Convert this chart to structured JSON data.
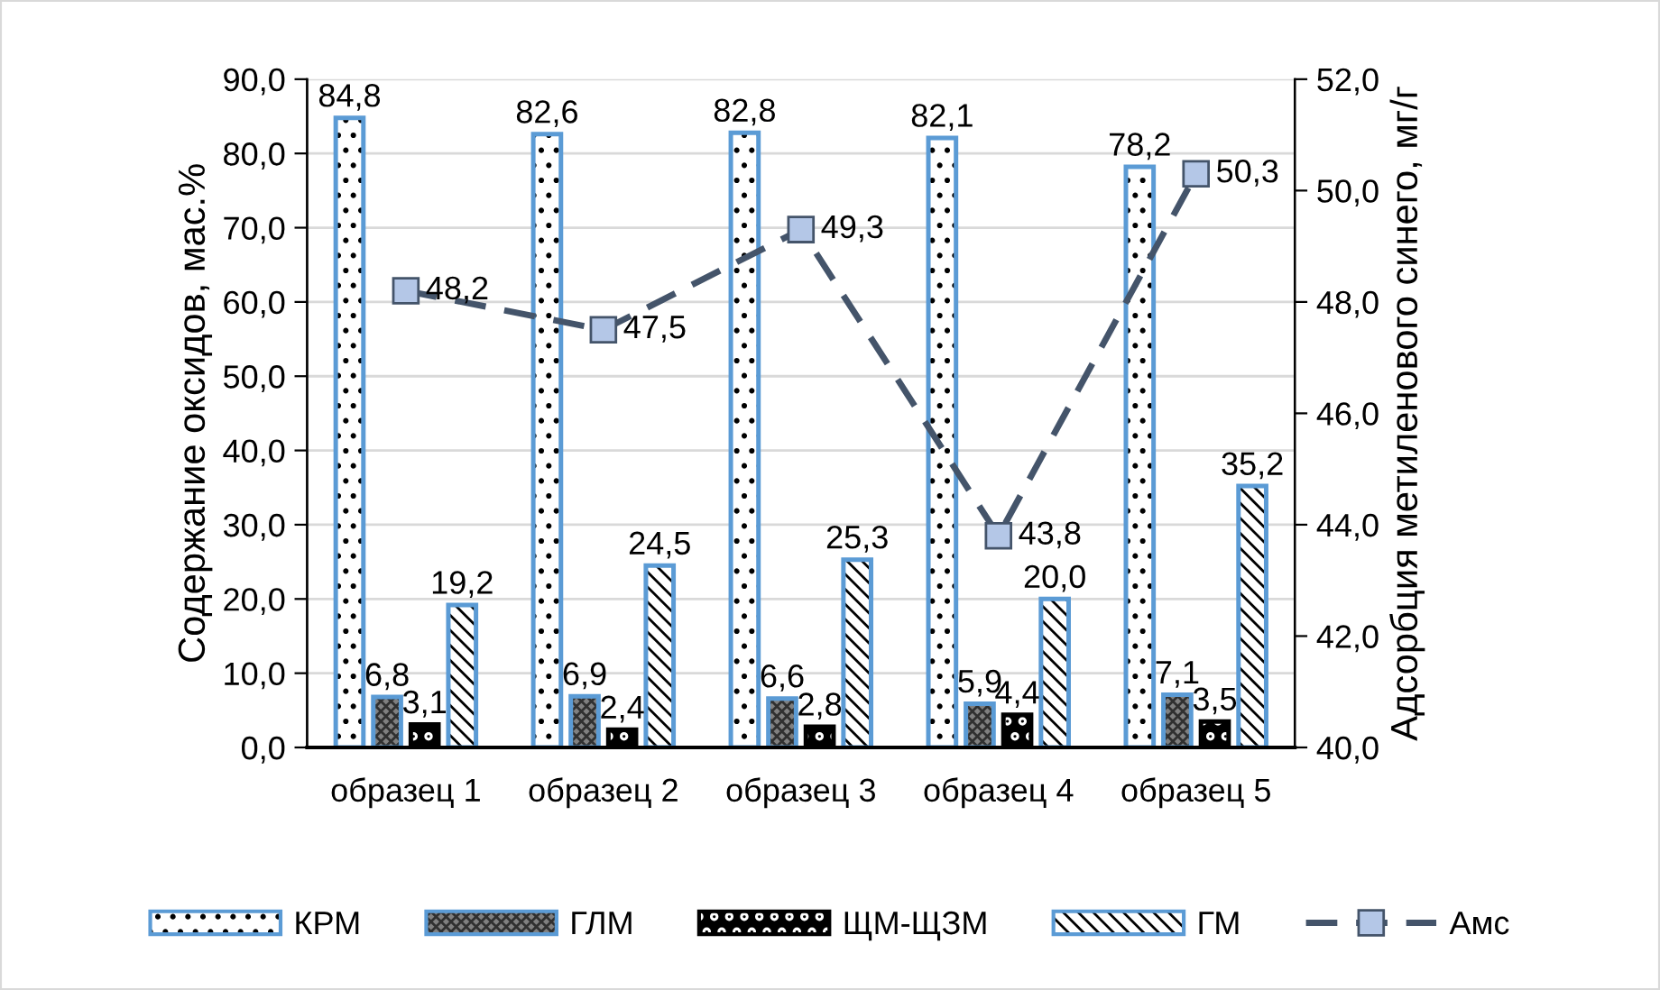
{
  "chart_data": {
    "type": "bar",
    "categories": [
      "образец 1",
      "образец 2",
      "образец 3",
      "образец 4",
      "образец 5"
    ],
    "ylabel": "Содержание оксидов, мас.%",
    "y2label": "Адсорбция метиленового синего, мг/г",
    "series": [
      {
        "name": "КРМ",
        "color": "#5b9bd5",
        "values": [
          84.8,
          82.6,
          82.8,
          82.1,
          78.2
        ],
        "value_labels": [
          "84,8",
          "82,6",
          "82,8",
          "82,1",
          "78,2"
        ]
      },
      {
        "name": "ГЛМ",
        "color": "#5b9bd5",
        "values": [
          6.8,
          6.9,
          6.6,
          5.9,
          7.1
        ],
        "value_labels": [
          "6,8",
          "6,9",
          "6,6",
          "5,9",
          "7,1"
        ]
      },
      {
        "name": "ЩМ-ЩЗМ",
        "color": "#000000",
        "values": [
          3.1,
          2.4,
          2.8,
          4.4,
          3.5
        ],
        "value_labels": [
          "3,1",
          "2,4",
          "2,8",
          "4,4",
          "3,5"
        ]
      },
      {
        "name": "ГМ",
        "color": "#5b9bd5",
        "values": [
          19.2,
          24.5,
          25.3,
          20.0,
          35.2
        ],
        "value_labels": [
          "19,2",
          "24,5",
          "25,3",
          "20,0",
          "35,2"
        ]
      },
      {
        "name": "Амс",
        "type": "line",
        "axis": "y2",
        "color": "#44546a",
        "marker": "square",
        "line_style": "dashed",
        "values": [
          48.2,
          47.5,
          49.3,
          43.8,
          50.3
        ],
        "value_labels": [
          "48,2",
          "47,5",
          "49,3",
          "43,8",
          "50,3"
        ]
      }
    ],
    "ylim": [
      0,
      90
    ],
    "yticks": [
      {
        "value": 0,
        "label": "0,0"
      },
      {
        "value": 10,
        "label": "10,0"
      },
      {
        "value": 20,
        "label": "20,0"
      },
      {
        "value": 30,
        "label": "30,0"
      },
      {
        "value": 40,
        "label": "40,0"
      },
      {
        "value": 50,
        "label": "50,0"
      },
      {
        "value": 60,
        "label": "60,0"
      },
      {
        "value": 70,
        "label": "70,0"
      },
      {
        "value": 80,
        "label": "80,0"
      },
      {
        "value": 90,
        "label": "90,0"
      }
    ],
    "y2lim": [
      40,
      52
    ],
    "y2ticks": [
      {
        "value": 40,
        "label": "40,0"
      },
      {
        "value": 42,
        "label": "42,0"
      },
      {
        "value": 44,
        "label": "44,0"
      },
      {
        "value": 46,
        "label": "46,0"
      },
      {
        "value": 48,
        "label": "48,0"
      },
      {
        "value": 50,
        "label": "50,0"
      },
      {
        "value": 52,
        "label": "52,0"
      }
    ],
    "grid": "y",
    "legend": "bottom"
  }
}
